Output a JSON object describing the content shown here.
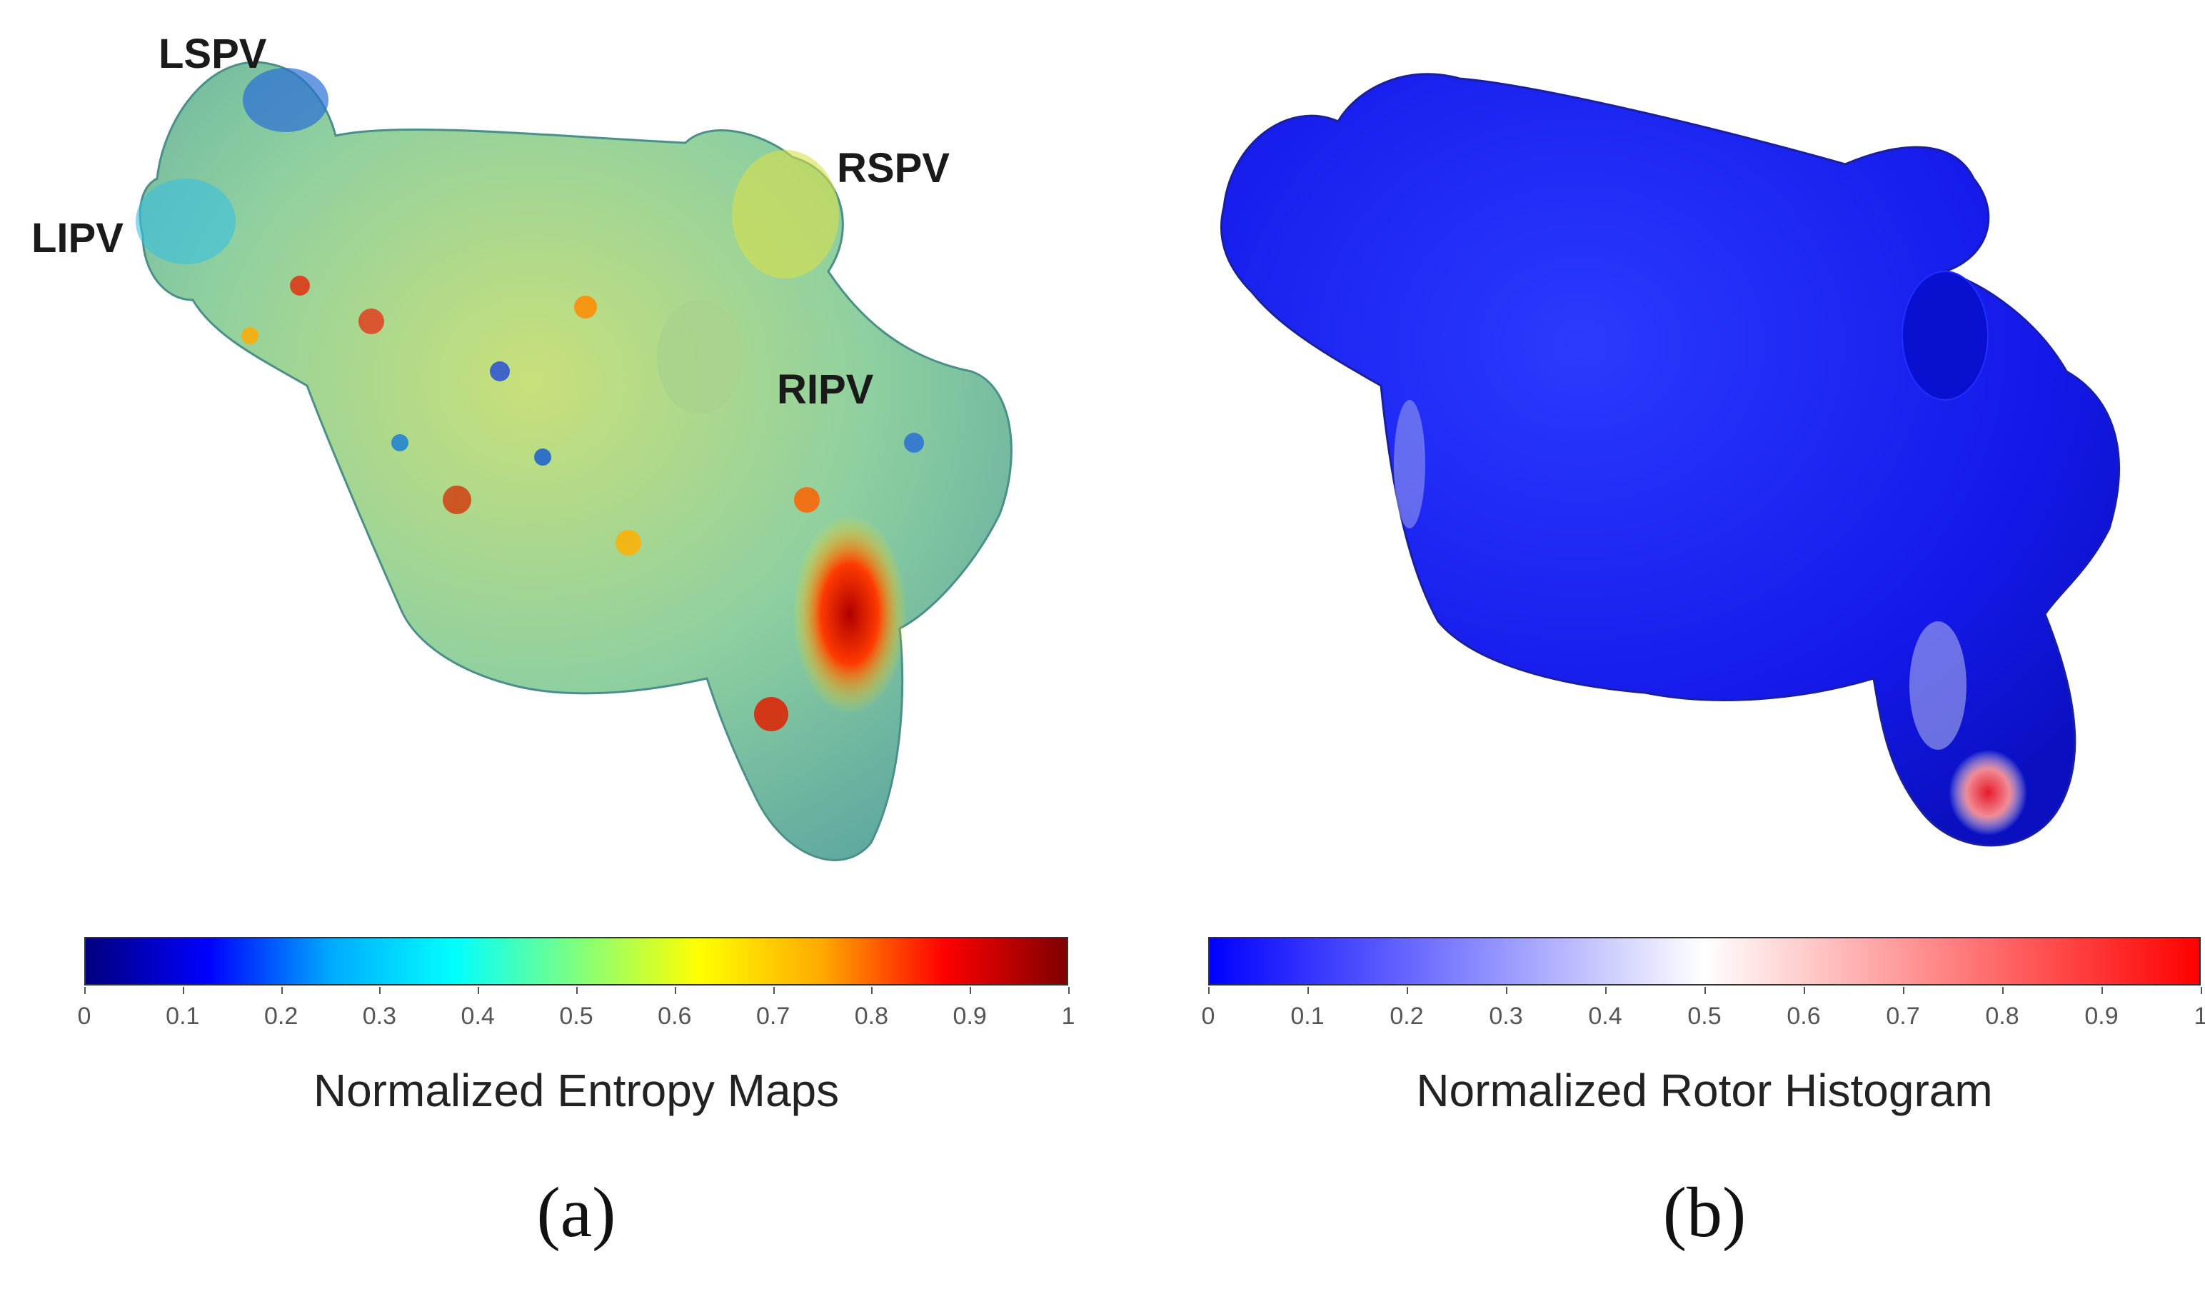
{
  "panel_a": {
    "labels": {
      "lspv": "LSPV",
      "lipv": "LIPV",
      "rspv": "RSPV",
      "ripv": "RIPV"
    },
    "colorbar": {
      "title": "Normalized Entropy Maps",
      "ticks": [
        "0",
        "0.1",
        "0.2",
        "0.3",
        "0.4",
        "0.5",
        "0.6",
        "0.7",
        "0.8",
        "0.9",
        "1"
      ],
      "colormap": [
        "#00007f",
        "#0000ff",
        "#00aaff",
        "#00ffff",
        "#7fff7f",
        "#ffff00",
        "#ffaa00",
        "#ff0000",
        "#7f0000"
      ]
    },
    "tag": "(a)"
  },
  "panel_b": {
    "colorbar": {
      "title": "Normalized Rotor Histogram",
      "ticks": [
        "0",
        "0.1",
        "0.2",
        "0.3",
        "0.4",
        "0.5",
        "0.6",
        "0.7",
        "0.8",
        "0.9",
        "1"
      ],
      "colormap": [
        "#0000ff",
        "#ffffff",
        "#ff0000"
      ]
    },
    "tag": "(b)"
  }
}
